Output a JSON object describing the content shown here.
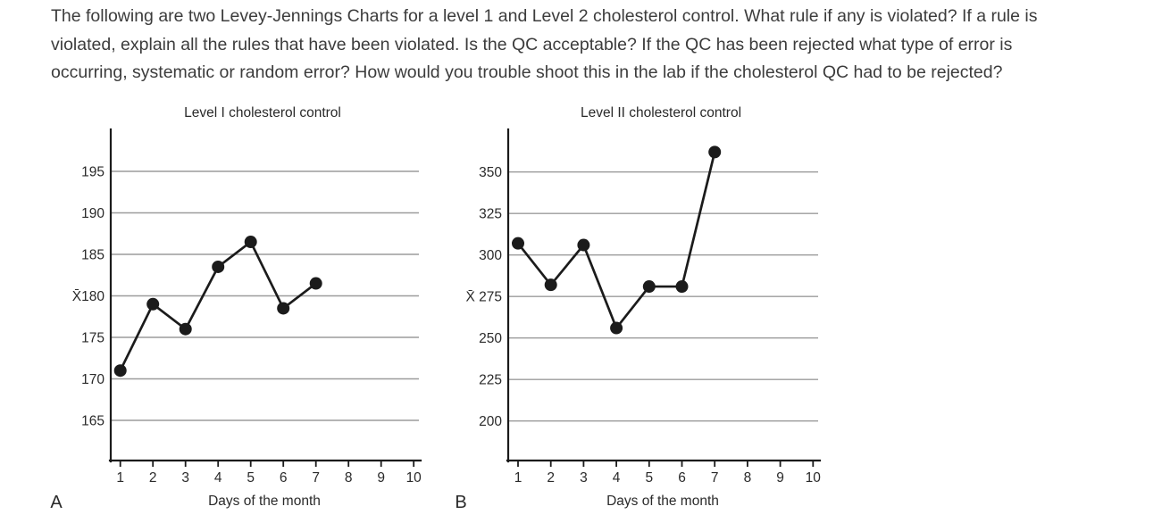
{
  "page": {
    "background": "#ffffff"
  },
  "colors": {
    "question_text": "#3c3c3c",
    "chart_ink": "#1b1b1b",
    "gridline": "#9c9c9c",
    "label_text": "#2a2a2a",
    "background": "#ffffff"
  },
  "question": {
    "lines": [
      "The following are two Levey-Jennings Charts for a level 1 and Level 2 cholesterol control. What rule if any is violated? If a rule is",
      "violated, explain all the rules that have been violated. Is the QC acceptable? If the QC has been rejected what type of error is",
      "occurring, systematic or random error? How would you trouble shoot this in the lab if the cholesterol QC had to be rejected?"
    ]
  },
  "chart_data": [
    {
      "type": "line",
      "panel_letter": "A",
      "title": "Level I cholesterol control",
      "xlabel": "Days of the month",
      "ylabel": "",
      "x_ticks": [
        1,
        2,
        3,
        4,
        5,
        6,
        7,
        8,
        9,
        10
      ],
      "y_ticks": [
        195,
        190,
        185,
        180,
        175,
        170,
        165
      ],
      "y_tick_labels": [
        "195",
        "190",
        "185",
        "X̄180",
        "175",
        "170",
        "165"
      ],
      "mean_value": 180,
      "mean_symbol": "X̄",
      "x": [
        1,
        2,
        3,
        4,
        5,
        6,
        7
      ],
      "values": [
        171,
        179,
        176,
        183.5,
        186.5,
        178.5,
        181.5
      ],
      "xlim": [
        0,
        10
      ],
      "ylim": [
        160,
        200
      ],
      "grid": true,
      "legend": false,
      "marker": "filled-circle"
    },
    {
      "type": "line",
      "panel_letter": "B",
      "title": "Level II cholesterol control",
      "xlabel": "Days of the month",
      "ylabel": "",
      "x_ticks": [
        1,
        2,
        3,
        4,
        5,
        6,
        7,
        8,
        9,
        10
      ],
      "y_ticks": [
        350,
        325,
        300,
        275,
        250,
        225,
        200
      ],
      "y_tick_labels": [
        "350",
        "325",
        "300",
        "X̄ 275",
        "250",
        "225",
        "200"
      ],
      "mean_value": 275,
      "mean_symbol": "X̄",
      "x": [
        1,
        2,
        3,
        4,
        5,
        6,
        7
      ],
      "values": [
        307,
        282,
        306,
        256,
        281,
        281,
        362
      ],
      "xlim": [
        0,
        10
      ],
      "ylim": [
        175,
        375
      ],
      "grid": true,
      "legend": false,
      "marker": "filled-circle"
    }
  ]
}
